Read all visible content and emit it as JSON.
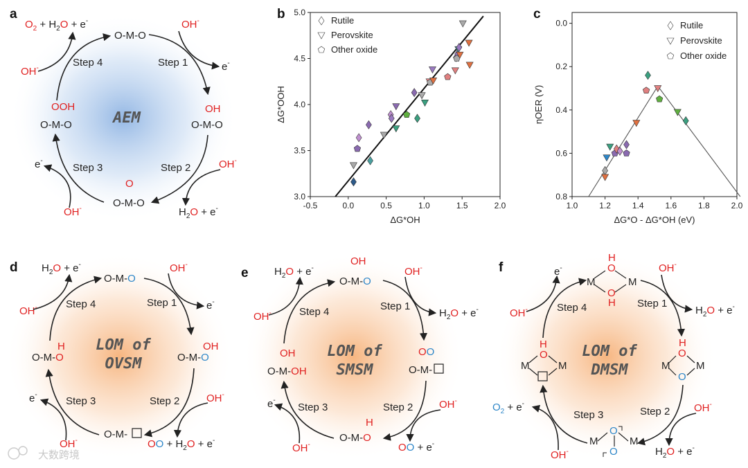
{
  "panels": {
    "a": {
      "letter": "a",
      "center": "AEM",
      "top_left_a": "O",
      "top_left_b": "2",
      "top_left_c": " + H",
      "top_left_d": "2",
      "top_left_e": "O",
      "top_left_f": " + e",
      "top_species": "O-M-O",
      "oh": "OH",
      "step1": "Step 1",
      "step2": "Step 2",
      "step3": "Step 3",
      "step4": "Step 4",
      "e": "e",
      "right_oh": "OH",
      "right_species": "O-M-O",
      "bottom_o": "O",
      "bottom_species": "O-M-O",
      "h2o_a": "H",
      "h2o_b": "2",
      "h2o_c": "O",
      "h2o_d": " + e",
      "left_ooh": "OOH",
      "left_species": "O-M-O"
    },
    "b": {
      "letter": "b"
    },
    "c": {
      "letter": "c"
    },
    "d": {
      "letter": "d",
      "center_line1": "LOM of",
      "center_line2": "OVSM",
      "top_species": "O-M-",
      "top_o": "O",
      "h2o_a": "H",
      "h2o_b": "2",
      "h2o_c": "O",
      "h2o_d": " + e",
      "right_oh": "OH",
      "right_species": "O-M-",
      "right_o": "O",
      "bottom_species": "O-M-",
      "bottom_right_a": "O",
      "bottom_right_b": "O",
      "bottom_right_c": " + H",
      "bottom_right_d": "2",
      "bottom_right_e": "O",
      "bottom_right_f": " + e",
      "left_h": "H",
      "left_species": "O-M-",
      "left_o": "O"
    },
    "e": {
      "letter": "e",
      "center_line1": "LOM of",
      "center_line2": "SMSM",
      "top_oh": "OH",
      "top_species": "O-M-",
      "top_o": "O",
      "right_species": "O-M-",
      "right_oo_a": "O",
      "right_oo_b": "O",
      "bottom_h": "H",
      "bottom_species": "O-M-",
      "bottom_o": "O",
      "oo_a": "O",
      "oo_b": "O",
      "oo_c": " + e",
      "left_oh": "OH",
      "left_species": "O-M-",
      "left_oh2": "OH"
    },
    "f": {
      "letter": "f",
      "center_line1": "LOM of",
      "center_line2": "DMSM",
      "m": "M",
      "h": "H",
      "o": "O",
      "o2_a": "O",
      "o2_b": "2",
      "o2_c": " + e"
    }
  },
  "common": {
    "oh": "OH",
    "minus": "-",
    "e": "e",
    "h2o_h": "H",
    "h2o_2": "2",
    "h2o_o": "O",
    "plus_e": " + e"
  },
  "chart_data": [
    {
      "type": "scatter",
      "panel": "b",
      "xlabel": "ΔG*OH",
      "ylabel": "ΔG*OOH",
      "xlim": [
        -0.5,
        2.0
      ],
      "ylim": [
        3.0,
        5.0
      ],
      "xticks": [
        "-0.5",
        "0.0",
        "0.5",
        "1.0",
        "1.5",
        "2.0"
      ],
      "yticks": [
        "3.0",
        "3.5",
        "4.0",
        "4.5",
        "5.0"
      ],
      "legend": [
        "Rutile",
        "Perovskite",
        "Other oxide"
      ],
      "fit_line": {
        "x": [
          -0.17,
          1.78
        ],
        "y": [
          3.0,
          4.96
        ]
      },
      "points": [
        {
          "s": "rutile",
          "x": 0.07,
          "y": 3.16,
          "c": "#2d5a8a"
        },
        {
          "s": "perovskite",
          "x": 0.07,
          "y": 3.34,
          "c": "#aaaaaa"
        },
        {
          "s": "other",
          "x": 0.12,
          "y": 3.52,
          "c": "#8a6ab0"
        },
        {
          "s": "rutile",
          "x": 0.14,
          "y": 3.64,
          "c": "#c090d0"
        },
        {
          "s": "rutile",
          "x": 0.27,
          "y": 3.78,
          "c": "#8a6ab0"
        },
        {
          "s": "rutile",
          "x": 0.29,
          "y": 3.39,
          "c": "#4aa0a0"
        },
        {
          "s": "perovskite",
          "x": 0.47,
          "y": 3.67,
          "c": "#aaaaaa"
        },
        {
          "s": "rutile",
          "x": 0.56,
          "y": 3.89,
          "c": "#c090d0"
        },
        {
          "s": "rutile",
          "x": 0.57,
          "y": 3.85,
          "c": "#9a7ac0"
        },
        {
          "s": "perovskite",
          "x": 0.63,
          "y": 3.98,
          "c": "#8a6ab0"
        },
        {
          "s": "perovskite",
          "x": 0.63,
          "y": 3.74,
          "c": "#3aa080"
        },
        {
          "s": "other",
          "x": 0.77,
          "y": 3.89,
          "c": "#60b040"
        },
        {
          "s": "rutile",
          "x": 0.87,
          "y": 4.13,
          "c": "#8a6ab0"
        },
        {
          "s": "rutile",
          "x": 0.91,
          "y": 3.85,
          "c": "#3aa080"
        },
        {
          "s": "perovskite",
          "x": 0.97,
          "y": 4.1,
          "c": "#aaaaaa"
        },
        {
          "s": "perovskite",
          "x": 1.01,
          "y": 4.02,
          "c": "#3aa080"
        },
        {
          "s": "perovskite",
          "x": 1.07,
          "y": 4.25,
          "c": "#e08080"
        },
        {
          "s": "other",
          "x": 1.08,
          "y": 4.24,
          "c": "#aaaaaa"
        },
        {
          "s": "perovskite",
          "x": 1.11,
          "y": 4.38,
          "c": "#9a7ac0"
        },
        {
          "s": "perovskite",
          "x": 1.12,
          "y": 4.26,
          "c": "#e07040"
        },
        {
          "s": "other",
          "x": 1.31,
          "y": 4.3,
          "c": "#e08080"
        },
        {
          "s": "rutile",
          "x": 1.42,
          "y": 4.51,
          "c": "#8a6ab0"
        },
        {
          "s": "perovskite",
          "x": 1.41,
          "y": 4.37,
          "c": "#e08080"
        },
        {
          "s": "rutile",
          "x": 1.44,
          "y": 4.55,
          "c": "#9a7ac0"
        },
        {
          "s": "other",
          "x": 1.43,
          "y": 4.5,
          "c": "#aaaaaa"
        },
        {
          "s": "perovskite",
          "x": 1.45,
          "y": 4.6,
          "c": "#4aa0a0"
        },
        {
          "s": "rutile",
          "x": 1.46,
          "y": 4.62,
          "c": "#9a7ac0"
        },
        {
          "s": "perovskite",
          "x": 1.47,
          "y": 4.54,
          "c": "#e07040"
        },
        {
          "s": "perovskite",
          "x": 1.51,
          "y": 4.88,
          "c": "#aaaaaa"
        },
        {
          "s": "perovskite",
          "x": 1.59,
          "y": 4.67,
          "c": "#e07040"
        },
        {
          "s": "perovskite",
          "x": 1.6,
          "y": 4.43,
          "c": "#e07040"
        }
      ]
    },
    {
      "type": "scatter",
      "panel": "c",
      "xlabel": "ΔG*O - ΔG*OH (eV)",
      "ylabel": "ηOER (V)",
      "xlim": [
        1.0,
        2.0
      ],
      "ylim": [
        0.8,
        -0.05
      ],
      "xticks": [
        "1.0",
        "1.2",
        "1.4",
        "1.6",
        "1.8",
        "2.0"
      ],
      "yticks": [
        "0.0",
        "0.2",
        "0.4",
        "0.6",
        "0.8"
      ],
      "legend": [
        "Rutile",
        "Perovskite",
        "Other oxide"
      ],
      "volcano": {
        "x": [
          1.1,
          1.52,
          2.02
        ],
        "y": [
          0.8,
          0.29,
          0.8
        ]
      },
      "points": [
        {
          "s": "rutile",
          "x": 1.2,
          "y": 0.68,
          "c": "#aaaaaa"
        },
        {
          "s": "perovskite",
          "x": 1.2,
          "y": 0.71,
          "c": "#e07040"
        },
        {
          "s": "perovskite",
          "x": 1.21,
          "y": 0.62,
          "c": "#2d86c8"
        },
        {
          "s": "perovskite",
          "x": 1.23,
          "y": 0.57,
          "c": "#3aa080"
        },
        {
          "s": "other",
          "x": 1.26,
          "y": 0.6,
          "c": "#8a6ab0"
        },
        {
          "s": "rutile",
          "x": 1.27,
          "y": 0.58,
          "c": "#e08080"
        },
        {
          "s": "rutile",
          "x": 1.29,
          "y": 0.59,
          "c": "#c090d0"
        },
        {
          "s": "rutile",
          "x": 1.33,
          "y": 0.56,
          "c": "#8a6ab0"
        },
        {
          "s": "other",
          "x": 1.33,
          "y": 0.6,
          "c": "#8a6ab0"
        },
        {
          "s": "perovskite",
          "x": 1.39,
          "y": 0.46,
          "c": "#e07040"
        },
        {
          "s": "other",
          "x": 1.45,
          "y": 0.31,
          "c": "#e08080"
        },
        {
          "s": "rutile",
          "x": 1.46,
          "y": 0.24,
          "c": "#3aa080"
        },
        {
          "s": "perovskite",
          "x": 1.52,
          "y": 0.3,
          "c": "#e08080"
        },
        {
          "s": "other",
          "x": 1.53,
          "y": 0.35,
          "c": "#60b040"
        },
        {
          "s": "perovskite",
          "x": 1.64,
          "y": 0.41,
          "c": "#60b040"
        },
        {
          "s": "rutile",
          "x": 1.69,
          "y": 0.45,
          "c": "#3aa080"
        }
      ]
    }
  ],
  "watermark": "大数跨境"
}
